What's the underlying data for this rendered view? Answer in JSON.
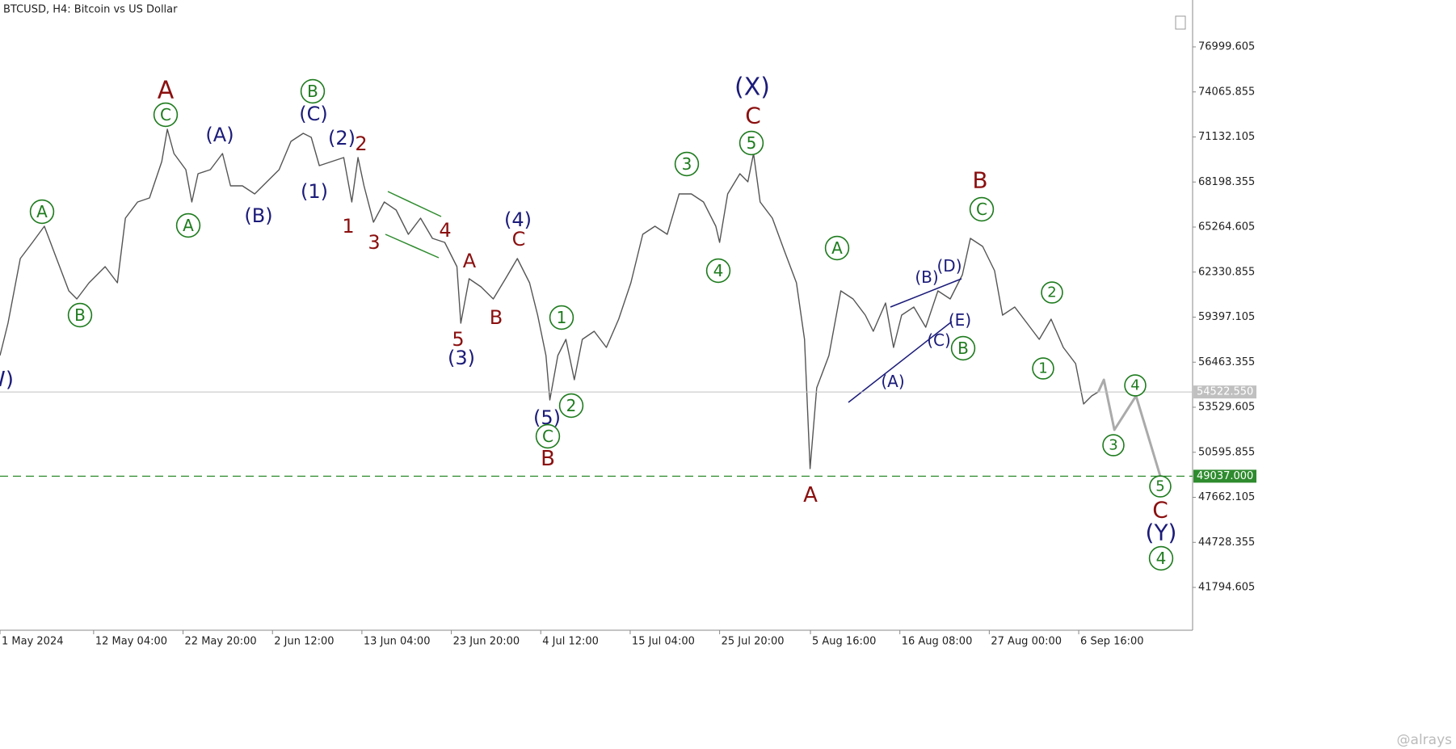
{
  "chart_data": {
    "type": "line",
    "title": "BTCUSD, H4:  Bitcoin vs US Dollar",
    "watermark": "@alrays",
    "xlim": [
      0,
      3414
    ],
    "ylim": [
      39006,
      80052
    ],
    "yticks": [
      76999.605,
      74065.855,
      71132.105,
      68198.355,
      65264.605,
      62330.855,
      59397.105,
      56463.355,
      53529.605,
      50595.855,
      47662.105,
      44728.355,
      41794.605
    ],
    "xticks": [
      {
        "value": 0,
        "label": "1 May 2024"
      },
      {
        "value": 268,
        "label": "12 May 04:00"
      },
      {
        "value": 524,
        "label": "22 May 20:00"
      },
      {
        "value": 780,
        "label": "2 Jun 12:00"
      },
      {
        "value": 1036,
        "label": "13 Jun 04:00"
      },
      {
        "value": 1292,
        "label": "23 Jun 20:00"
      },
      {
        "value": 1548,
        "label": "4 Jul 12:00"
      },
      {
        "value": 1804,
        "label": "15 Jul 04:00"
      },
      {
        "value": 2060,
        "label": "25 Jul 20:00"
      },
      {
        "value": 2320,
        "label": "5 Aug 16:00"
      },
      {
        "value": 2576,
        "label": "16 Aug 08:00"
      },
      {
        "value": 2832,
        "label": "27 Aug 00:00"
      },
      {
        "value": 3088,
        "label": "6 Sep 16:00"
      }
    ],
    "series": [
      {
        "color": "#555555",
        "x": [
          0,
          23,
          58,
          93,
          127,
          162,
          197,
          220,
          255,
          301,
          336,
          359,
          394,
          428,
          463,
          479,
          498,
          532,
          549,
          567,
          602,
          637,
          660,
          694,
          729,
          764,
          799,
          833,
          868,
          891,
          914,
          949,
          984,
          1007,
          1025,
          1042,
          1069,
          1100,
          1134,
          1169,
          1204,
          1238,
          1273,
          1308,
          1319,
          1343,
          1377,
          1412,
          1447,
          1481,
          1516,
          1539,
          1563,
          1574,
          1597,
          1620,
          1644,
          1667,
          1701,
          1736,
          1771,
          1806,
          1840,
          1875,
          1910,
          1944,
          1979,
          2014,
          2049,
          2060,
          2083,
          2118,
          2141,
          2157,
          2176,
          2211,
          2245,
          2280,
          2303,
          2319,
          2338,
          2373,
          2407,
          2442,
          2477,
          2500,
          2535,
          2558,
          2581,
          2616,
          2650,
          2685,
          2720,
          2755,
          2778,
          2813,
          2847,
          2870,
          2905,
          2940,
          2975,
          3009,
          3044,
          3079,
          3102,
          3125,
          3144
        ],
        "values": [
          56899,
          59004,
          63214,
          64266,
          65318,
          63214,
          61109,
          60583,
          61635,
          62687,
          61635,
          65845,
          66897,
          67160,
          69528,
          71633,
          70054,
          69002,
          66897,
          68739,
          69002,
          70054,
          67949,
          67949,
          67423,
          68213,
          69002,
          70844,
          71370,
          71107,
          69265,
          69528,
          69791,
          66897,
          69791,
          67949,
          65582,
          66897,
          66371,
          64792,
          65845,
          64529,
          64266,
          62687,
          59004,
          61898,
          61372,
          60583,
          61898,
          63214,
          61635,
          59530,
          56899,
          54005,
          56899,
          57952,
          55321,
          57952,
          58478,
          57426,
          59267,
          61635,
          64792,
          65318,
          64792,
          67423,
          67423,
          66897,
          65318,
          64266,
          67423,
          68739,
          68213,
          70054,
          66897,
          65845,
          63741,
          61635,
          57952,
          49532,
          54794,
          56899,
          61109,
          60583,
          59530,
          58478,
          60320,
          57426,
          59530,
          60056,
          58741,
          61109,
          60583,
          62161,
          64529,
          64003,
          62424,
          59530,
          60056,
          59004,
          57952,
          59267,
          57426,
          56373,
          53742,
          54268,
          54531
        ]
      },
      {
        "color": "#aaaaaa",
        "x": [
          3144,
          3160,
          3190,
          3252,
          3322
        ],
        "values": [
          54531,
          55321,
          52059,
          54268,
          49006
        ]
      }
    ],
    "hlines": [
      {
        "value": 54522.55,
        "label": "54522.550",
        "color": "#c0c0c0",
        "style": "solid"
      },
      {
        "value": 49037,
        "label": "49037.000",
        "color": "#2e8b2e",
        "style": "dashed"
      }
    ],
    "annotations": [
      {
        "text": "(W)",
        "color": "#1b1b7a"
      },
      {
        "text": "A",
        "color": "#1e7b1e",
        "circled": true
      },
      {
        "text": "B",
        "color": "#1e7b1e",
        "circled": true
      },
      {
        "text": "A",
        "color": "#8b0f0f"
      },
      {
        "text": "C",
        "color": "#1e7b1e",
        "circled": true
      },
      {
        "text": "A",
        "color": "#1e7b1e",
        "circled": true
      },
      {
        "text": "(A)",
        "color": "#1b1b7a"
      },
      {
        "text": "(B)",
        "color": "#1b1b7a"
      },
      {
        "text": "B",
        "color": "#1e7b1e",
        "circled": true
      },
      {
        "text": "(C)",
        "color": "#1b1b7a"
      },
      {
        "text": "(1)",
        "color": "#1b1b7a"
      },
      {
        "text": "(2)",
        "color": "#1b1b7a"
      },
      {
        "text": "2",
        "color": "#8b0f0f"
      },
      {
        "text": "1",
        "color": "#8b0f0f"
      },
      {
        "text": "3",
        "color": "#8b0f0f"
      },
      {
        "text": "4",
        "color": "#8b0f0f"
      },
      {
        "text": "A",
        "color": "#8b0f0f"
      },
      {
        "text": "5",
        "color": "#8b0f0f"
      },
      {
        "text": "(3)",
        "color": "#1b1b7a"
      },
      {
        "text": "B",
        "color": "#8b0f0f"
      },
      {
        "text": "(4)",
        "color": "#1b1b7a"
      },
      {
        "text": "C",
        "color": "#8b0f0f"
      },
      {
        "text": "1",
        "color": "#1e7b1e",
        "circled": true
      },
      {
        "text": "2",
        "color": "#1e7b1e",
        "circled": true
      },
      {
        "text": "(5)",
        "color": "#1b1b7a"
      },
      {
        "text": "C",
        "color": "#1e7b1e",
        "circled": true
      },
      {
        "text": "B",
        "color": "#8b0f0f"
      },
      {
        "text": "3",
        "color": "#1e7b1e",
        "circled": true
      },
      {
        "text": "4",
        "color": "#1e7b1e",
        "circled": true
      },
      {
        "text": "(X)",
        "color": "#1b1b7a"
      },
      {
        "text": "C",
        "color": "#8b0f0f"
      },
      {
        "text": "5",
        "color": "#1e7b1e",
        "circled": true
      },
      {
        "text": "A",
        "color": "#8b0f0f"
      },
      {
        "text": "A",
        "color": "#1e7b1e",
        "circled": true
      },
      {
        "text": "(A)",
        "color": "#1b1b7a"
      },
      {
        "text": "(B)",
        "color": "#1b1b7a"
      },
      {
        "text": "(D)",
        "color": "#1b1b7a"
      },
      {
        "text": "(E)",
        "color": "#1b1b7a"
      },
      {
        "text": "(C)",
        "color": "#1b1b7a"
      },
      {
        "text": "B",
        "color": "#1e7b1e",
        "circled": true
      },
      {
        "text": "B",
        "color": "#8b0f0f"
      },
      {
        "text": "C",
        "color": "#1e7b1e",
        "circled": true
      },
      {
        "text": "2",
        "color": "#1e7b1e",
        "circled": true
      },
      {
        "text": "1",
        "color": "#1e7b1e",
        "circled": true
      },
      {
        "text": "3",
        "color": "#1e7b1e",
        "circled": true
      },
      {
        "text": "4",
        "color": "#1e7b1e",
        "circled": true
      },
      {
        "text": "5",
        "color": "#1e7b1e",
        "circled": true
      },
      {
        "text": "C",
        "color": "#8b0f0f"
      },
      {
        "text": "(Y)",
        "color": "#1b1b7a"
      },
      {
        "text": "4",
        "color": "#1e7b1e",
        "circled": true
      }
    ]
  }
}
